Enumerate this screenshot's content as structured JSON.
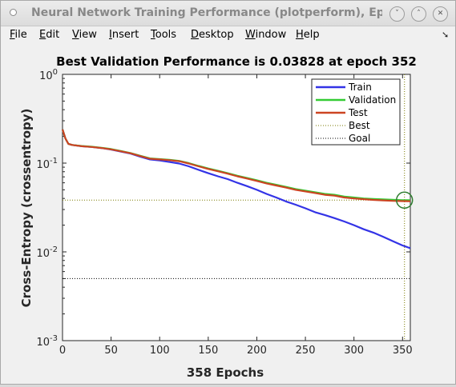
{
  "window": {
    "title": "Neural Network Training Performance (plotperform), Epo",
    "controls": [
      "˅",
      "˄",
      "✕"
    ]
  },
  "menu": {
    "file": {
      "label": "File",
      "mnemonic": "F",
      "rest": "ile"
    },
    "edit": {
      "label": "Edit",
      "mnemonic": "E",
      "rest": "dit"
    },
    "view": {
      "label": "View",
      "mnemonic": "V",
      "rest": "iew"
    },
    "insert": {
      "label": "Insert",
      "mnemonic": "I",
      "rest": "nsert"
    },
    "tools": {
      "label": "Tools",
      "mnemonic": "T",
      "rest": "ools"
    },
    "desktop": {
      "label": "Desktop",
      "mnemonic": "D",
      "rest": "esktop"
    },
    "window": {
      "label": "Window",
      "mnemonic": "W",
      "rest": "indow"
    },
    "help": {
      "label": "Help",
      "mnemonic": "H",
      "rest": "elp"
    }
  },
  "chart_data": {
    "type": "line",
    "title": "Best Validation Performance is 0.03828 at epoch 352",
    "xlabel": "358 Epochs",
    "ylabel": "Cross-Entropy  (crossentropy)",
    "xlim": [
      0,
      358
    ],
    "ylim": [
      0.001,
      1
    ],
    "yscale": "log",
    "xticks": [
      0,
      50,
      100,
      150,
      200,
      250,
      300,
      350
    ],
    "xtick_labels": [
      "0",
      "50",
      "100",
      "150",
      "200",
      "250",
      "300",
      "350"
    ],
    "yticks": [
      {
        "base": "10",
        "exp": "0",
        "value": 1
      },
      {
        "base": "10",
        "exp": "-1",
        "value": 0.1
      },
      {
        "base": "10",
        "exp": "-2",
        "value": 0.01
      },
      {
        "base": "10",
        "exp": "-3",
        "value": 0.001
      }
    ],
    "legend_position": "top-right",
    "series": [
      {
        "name": "Train",
        "color": "#3333e6",
        "style": "solid",
        "x": [
          0,
          3,
          6,
          10,
          20,
          30,
          40,
          50,
          60,
          70,
          80,
          90,
          100,
          110,
          120,
          130,
          140,
          150,
          160,
          170,
          180,
          190,
          200,
          210,
          220,
          230,
          240,
          250,
          260,
          270,
          280,
          290,
          300,
          310,
          320,
          330,
          340,
          350,
          358
        ],
        "y": [
          0.24,
          0.19,
          0.165,
          0.16,
          0.155,
          0.152,
          0.148,
          0.142,
          0.135,
          0.128,
          0.118,
          0.11,
          0.107,
          0.103,
          0.099,
          0.092,
          0.084,
          0.077,
          0.071,
          0.066,
          0.06,
          0.055,
          0.05,
          0.045,
          0.041,
          0.037,
          0.034,
          0.031,
          0.028,
          0.026,
          0.024,
          0.022,
          0.02,
          0.018,
          0.0165,
          0.0148,
          0.0132,
          0.0118,
          0.011
        ]
      },
      {
        "name": "Validation",
        "color": "#33cc33",
        "style": "solid",
        "x": [
          0,
          3,
          6,
          10,
          20,
          30,
          40,
          50,
          60,
          70,
          80,
          90,
          100,
          110,
          120,
          130,
          140,
          150,
          160,
          170,
          180,
          190,
          200,
          210,
          220,
          230,
          240,
          250,
          260,
          270,
          280,
          290,
          300,
          310,
          320,
          330,
          340,
          350,
          358
        ],
        "y": [
          0.24,
          0.19,
          0.165,
          0.16,
          0.156,
          0.153,
          0.149,
          0.144,
          0.137,
          0.13,
          0.121,
          0.113,
          0.111,
          0.109,
          0.106,
          0.1,
          0.093,
          0.087,
          0.082,
          0.077,
          0.072,
          0.068,
          0.064,
          0.06,
          0.057,
          0.054,
          0.051,
          0.049,
          0.047,
          0.045,
          0.044,
          0.042,
          0.041,
          0.04,
          0.0395,
          0.039,
          0.0386,
          0.0383,
          0.0383
        ]
      },
      {
        "name": "Test",
        "color": "#cc4422",
        "style": "solid",
        "x": [
          0,
          3,
          6,
          10,
          20,
          30,
          40,
          50,
          60,
          70,
          80,
          90,
          100,
          110,
          120,
          130,
          140,
          150,
          160,
          170,
          180,
          190,
          200,
          210,
          220,
          230,
          240,
          250,
          260,
          270,
          280,
          290,
          300,
          310,
          320,
          330,
          340,
          350,
          358
        ],
        "y": [
          0.24,
          0.19,
          0.165,
          0.16,
          0.155,
          0.152,
          0.148,
          0.143,
          0.136,
          0.129,
          0.12,
          0.112,
          0.11,
          0.108,
          0.105,
          0.099,
          0.092,
          0.086,
          0.081,
          0.076,
          0.071,
          0.067,
          0.063,
          0.059,
          0.056,
          0.053,
          0.05,
          0.048,
          0.046,
          0.044,
          0.043,
          0.041,
          0.04,
          0.0392,
          0.0385,
          0.038,
          0.0376,
          0.0373,
          0.0372
        ]
      },
      {
        "name": "Best",
        "color": "#7a7a00",
        "style": "dotted"
      },
      {
        "name": "Goal",
        "color": "#000000",
        "style": "dotted",
        "y_value": 0.005
      }
    ],
    "best": {
      "epoch": 352,
      "value": 0.03828
    }
  }
}
